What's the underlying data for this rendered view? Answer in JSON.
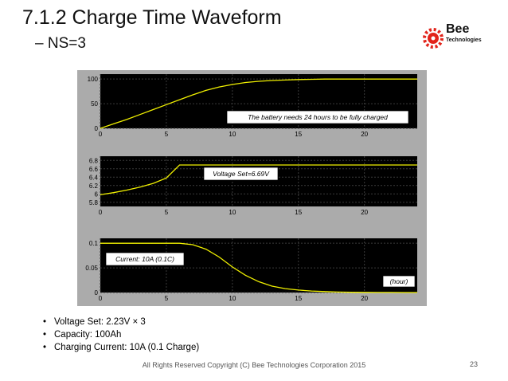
{
  "slide": {
    "title": "7.1.2 Charge Time Waveform",
    "subtitle": "– NS=3",
    "footer": "All Rights Reserved Copyright (C) Bee Technologies Corporation 2015",
    "page_number": "23",
    "bullet_symbol": "•",
    "bullets": [
      "Voltage Set: 2.23V × 3",
      "Capacity: 100Ah",
      "Charging Current: 10A (0.1 Charge)"
    ]
  },
  "logo": {
    "name": "Bee",
    "tagline": "Technologies",
    "icon": "bee-gear-logo-icon",
    "color": "#e2231a"
  },
  "colors": {
    "scope_bg": "#ababab",
    "plot_bg": "#000000",
    "trace": "#f0f000",
    "grid": "#3a3a3a"
  },
  "chart_data": [
    {
      "type": "line",
      "x": [
        0,
        1,
        2,
        3,
        4,
        5,
        6,
        7,
        8,
        9,
        10,
        11,
        12,
        13,
        14,
        15,
        16,
        17,
        18,
        19,
        20,
        21,
        22,
        23,
        24
      ],
      "series": [
        {
          "values": [
            0,
            9,
            18,
            28,
            38,
            48,
            58,
            68,
            77,
            84,
            89,
            93,
            95.5,
            97,
            98,
            99,
            99.5,
            100,
            100,
            100,
            100,
            100,
            100,
            100,
            100
          ]
        }
      ],
      "xlim": [
        0,
        24
      ],
      "ylim": [
        0,
        110
      ],
      "xticks": [
        "0",
        "5",
        "10",
        "15",
        "20"
      ],
      "yticks": [
        "0",
        "50",
        "100"
      ],
      "annotations": [
        "The battery needs 24 hours to be fully charged"
      ],
      "grid": true
    },
    {
      "type": "line",
      "x": [
        0,
        1,
        2,
        3,
        4,
        5,
        6,
        7,
        8,
        9,
        10,
        11,
        12,
        13,
        14,
        15,
        16,
        17,
        18,
        19,
        20,
        21,
        22,
        23,
        24
      ],
      "series": [
        {
          "values": [
            5.98,
            6.03,
            6.09,
            6.16,
            6.25,
            6.38,
            6.69,
            6.69,
            6.69,
            6.69,
            6.69,
            6.69,
            6.69,
            6.69,
            6.69,
            6.69,
            6.69,
            6.69,
            6.69,
            6.69,
            6.69,
            6.69,
            6.69,
            6.69,
            6.69
          ]
        }
      ],
      "xlim": [
        0,
        24
      ],
      "ylim": [
        5.7,
        6.9
      ],
      "xticks": [
        "0",
        "5",
        "10",
        "15",
        "20"
      ],
      "yticks": [
        "5.8",
        "6",
        "6.2",
        "6.4",
        "6.6",
        "6.8"
      ],
      "annotations": [
        "Voltage Set=6.69V"
      ],
      "grid": true
    },
    {
      "type": "line",
      "x": [
        0,
        1,
        2,
        3,
        4,
        5,
        6,
        7,
        8,
        9,
        10,
        11,
        12,
        13,
        14,
        15,
        16,
        17,
        18,
        19,
        20,
        21,
        22,
        23,
        24
      ],
      "series": [
        {
          "values": [
            0.1,
            0.1,
            0.1,
            0.1,
            0.1,
            0.1,
            0.1,
            0.097,
            0.088,
            0.072,
            0.052,
            0.035,
            0.022,
            0.013,
            0.008,
            0.005,
            0.003,
            0.002,
            0.001,
            0.0005,
            0.0003,
            0.0002,
            0.0001,
            0,
            0
          ]
        }
      ],
      "xlim": [
        0,
        24
      ],
      "ylim": [
        0,
        0.11
      ],
      "xticks": [
        "0",
        "5",
        "10",
        "15",
        "20"
      ],
      "yticks": [
        "0",
        "0.05",
        "0.1"
      ],
      "annotations": [
        "Current: 10A (0.1C)",
        "(hour)"
      ],
      "grid": true
    }
  ]
}
